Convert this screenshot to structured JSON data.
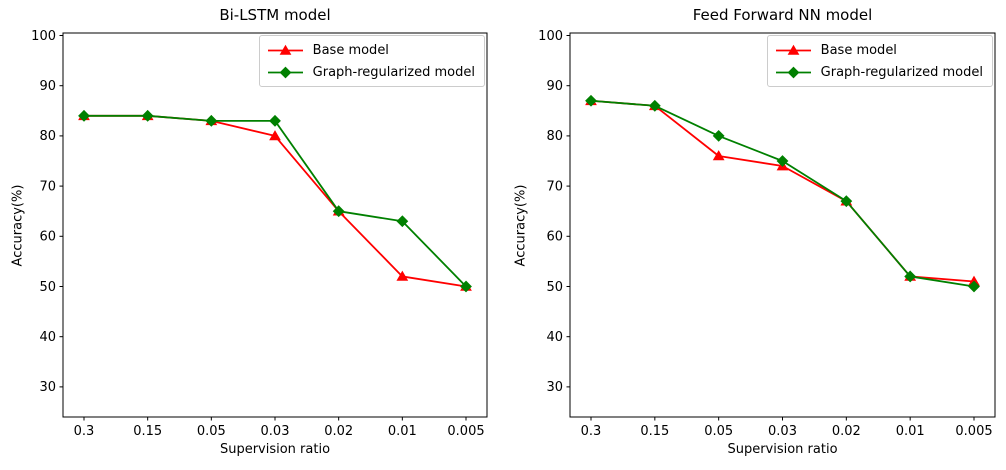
{
  "chart_data": [
    {
      "type": "line",
      "title": "Bi-LSTM model",
      "xlabel": "Supervision ratio",
      "ylabel": "Accuracy(%)",
      "categories": [
        "0.3",
        "0.15",
        "0.05",
        "0.03",
        "0.02",
        "0.01",
        "0.005"
      ],
      "series": [
        {
          "name": "Base model",
          "color": "#ff0000",
          "marker": "triangle-up",
          "values": [
            84,
            84,
            83,
            80,
            65,
            52,
            50
          ]
        },
        {
          "name": "Graph-regularized model",
          "color": "#008000",
          "marker": "diamond",
          "values": [
            84,
            84,
            83,
            83,
            65,
            63,
            50
          ]
        }
      ],
      "ylim": [
        24,
        100.5
      ],
      "yticks": [
        30,
        40,
        50,
        60,
        70,
        80,
        90,
        100
      ],
      "grid": false,
      "legend_position": "upper-right"
    },
    {
      "type": "line",
      "title": "Feed Forward NN model",
      "xlabel": "Supervision ratio",
      "ylabel": "Accuracy(%)",
      "categories": [
        "0.3",
        "0.15",
        "0.05",
        "0.03",
        "0.02",
        "0.01",
        "0.005"
      ],
      "series": [
        {
          "name": "Base model",
          "color": "#ff0000",
          "marker": "triangle-up",
          "values": [
            87,
            86,
            76,
            74,
            67,
            52,
            51
          ]
        },
        {
          "name": "Graph-regularized model",
          "color": "#008000",
          "marker": "diamond",
          "values": [
            87,
            86,
            80,
            75,
            67,
            52,
            50
          ]
        }
      ],
      "ylim": [
        24,
        100.5
      ],
      "yticks": [
        30,
        40,
        50,
        60,
        70,
        80,
        90,
        100
      ],
      "grid": false,
      "legend_position": "upper-right"
    }
  ],
  "figure": {
    "background_color": "#ffffff",
    "axis_color": "#000000"
  }
}
